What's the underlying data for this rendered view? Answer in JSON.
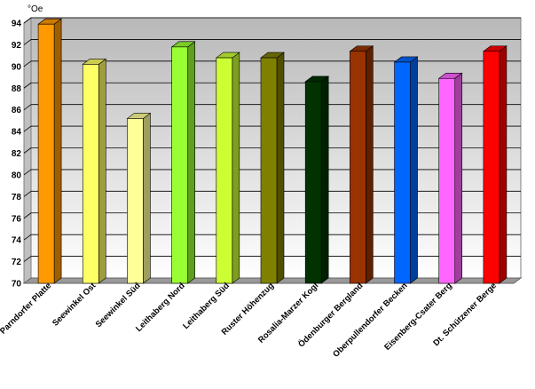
{
  "chart_data": {
    "type": "bar",
    "style": "3d",
    "unit_label": "°Oe",
    "categories": [
      "Parndorfer Platte",
      "Seewinkel Ost",
      "Seewinkel Süd",
      "Leithaberg Nord",
      "Leithaberg Süd",
      "Ruster Höhenzug",
      "Rosalia-Marzer Kogl",
      "Ödenburger Bergland",
      "Oberpullendorfer Becken",
      "Eisenberg-Csater Berg",
      "Dt. Schützener Berge"
    ],
    "values": [
      93.9,
      90.2,
      85.2,
      91.8,
      90.8,
      90.8,
      88.6,
      91.4,
      90.4,
      88.9,
      91.4
    ],
    "colors": [
      "#ff9900",
      "#ffff66",
      "#ffff99",
      "#99ff33",
      "#ccff33",
      "#808000",
      "#003300",
      "#993300",
      "#0066ff",
      "#ff66ff",
      "#ff0000"
    ],
    "ylim": [
      70,
      94
    ],
    "yticks": [
      70,
      72,
      74,
      76,
      78,
      80,
      82,
      84,
      86,
      88,
      90,
      92,
      94
    ],
    "grid": true,
    "legend": "none",
    "wall_color": "#c0c0c0",
    "floor_color": "#999999"
  }
}
